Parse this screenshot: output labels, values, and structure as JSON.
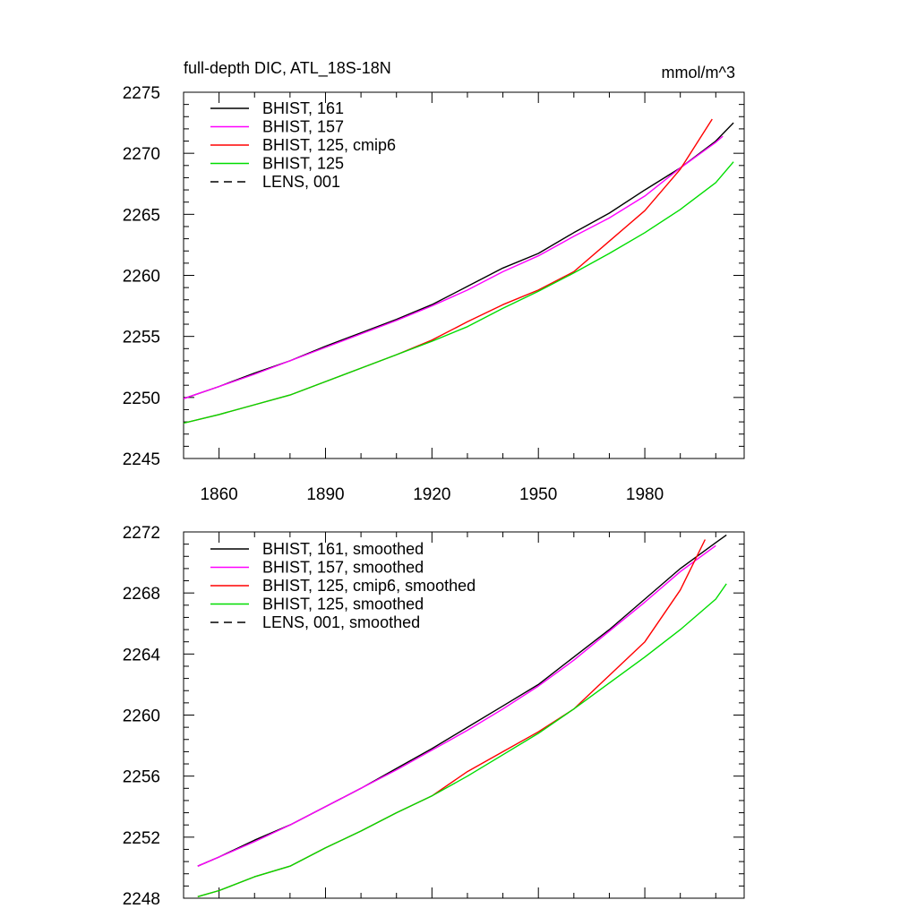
{
  "chart_data": [
    {
      "type": "line",
      "title_left": "full-depth DIC, ATL_18S-18N",
      "title_right": "mmol/m^3",
      "xlim": [
        1850,
        2008
      ],
      "ylim": [
        2245,
        2275
      ],
      "x_ticks": [
        1860,
        1890,
        1920,
        1950,
        1980
      ],
      "x_tick_labels": [
        "1860",
        "1890",
        "1920",
        "1950",
        "1980"
      ],
      "y_ticks": [
        2245,
        2250,
        2255,
        2260,
        2265,
        2270,
        2275
      ],
      "y_tick_labels": [
        "2245",
        "2250",
        "2255",
        "2260",
        "2265",
        "2270",
        "2275"
      ],
      "series": [
        {
          "name": "BHIST, 161",
          "color": "#000000",
          "dash": "solid",
          "x": [
            1850,
            1860,
            1870,
            1880,
            1890,
            1900,
            1910,
            1920,
            1930,
            1940,
            1950,
            1960,
            1970,
            1980,
            1990,
            2000,
            2005
          ],
          "y": [
            2249.9,
            2250.9,
            2252.0,
            2253.0,
            2254.2,
            2255.3,
            2256.4,
            2257.6,
            2259.1,
            2260.6,
            2261.8,
            2263.5,
            2265.1,
            2267.0,
            2268.8,
            2271.0,
            2272.5
          ]
        },
        {
          "name": "BHIST, 157",
          "color": "#ff00ff",
          "dash": "solid",
          "x": [
            1850,
            1860,
            1870,
            1880,
            1890,
            1900,
            1910,
            1920,
            1930,
            1940,
            1950,
            1960,
            1970,
            1980,
            1990,
            2000,
            2002
          ],
          "y": [
            2249.9,
            2250.9,
            2251.9,
            2253.0,
            2254.1,
            2255.2,
            2256.3,
            2257.5,
            2258.8,
            2260.3,
            2261.6,
            2263.2,
            2264.7,
            2266.5,
            2268.8,
            2270.9,
            2271.4
          ]
        },
        {
          "name": "BHIST, 125, cmip6",
          "color": "#ff0000",
          "dash": "solid",
          "x": [
            1850,
            1860,
            1870,
            1880,
            1890,
            1900,
            1910,
            1920,
            1930,
            1940,
            1950,
            1960,
            1970,
            1980,
            1990,
            1999
          ],
          "y": [
            2247.9,
            2248.6,
            2249.4,
            2250.2,
            2251.3,
            2252.4,
            2253.5,
            2254.7,
            2256.2,
            2257.6,
            2258.8,
            2260.3,
            2262.8,
            2265.3,
            2268.7,
            2272.8
          ]
        },
        {
          "name": "BHIST, 125",
          "color": "#00dd00",
          "dash": "solid",
          "x": [
            1850,
            1860,
            1870,
            1880,
            1890,
            1900,
            1910,
            1920,
            1930,
            1940,
            1950,
            1960,
            1970,
            1980,
            1990,
            2000,
            2005
          ],
          "y": [
            2247.9,
            2248.6,
            2249.4,
            2250.2,
            2251.3,
            2252.4,
            2253.5,
            2254.6,
            2255.8,
            2257.3,
            2258.7,
            2260.2,
            2261.8,
            2263.5,
            2265.4,
            2267.6,
            2269.3
          ]
        }
      ],
      "legend": [
        {
          "label": "BHIST, 161",
          "color": "#000000",
          "dash": "solid"
        },
        {
          "label": "BHIST, 157",
          "color": "#ff00ff",
          "dash": "solid"
        },
        {
          "label": "BHIST, 125, cmip6",
          "color": "#ff0000",
          "dash": "solid"
        },
        {
          "label": "BHIST, 125",
          "color": "#00dd00",
          "dash": "solid"
        },
        {
          "label": "LENS, 001",
          "color": "#000000",
          "dash": "dashed"
        }
      ]
    },
    {
      "type": "line",
      "title_left": "",
      "title_right": "",
      "xlim": [
        1850,
        2008
      ],
      "ylim": [
        2248,
        2272
      ],
      "x_ticks": [
        1860,
        1890,
        1920,
        1950,
        1980
      ],
      "x_tick_labels": [],
      "y_ticks": [
        2248,
        2252,
        2256,
        2260,
        2264,
        2268,
        2272
      ],
      "y_tick_labels": [
        "2248",
        "2252",
        "2256",
        "2260",
        "2264",
        "2268",
        "2272"
      ],
      "series": [
        {
          "name": "BHIST, 161, smoothed",
          "color": "#000000",
          "dash": "solid",
          "x": [
            1854,
            1860,
            1870,
            1880,
            1890,
            1900,
            1910,
            1920,
            1930,
            1940,
            1950,
            1960,
            1970,
            1980,
            1990,
            2000,
            2003
          ],
          "y": [
            2250.1,
            2250.7,
            2251.8,
            2252.8,
            2254.0,
            2255.2,
            2256.5,
            2257.8,
            2259.2,
            2260.6,
            2262.0,
            2263.8,
            2265.6,
            2267.6,
            2269.6,
            2271.3,
            2271.8
          ]
        },
        {
          "name": "BHIST, 157, smoothed",
          "color": "#ff00ff",
          "dash": "solid",
          "x": [
            1854,
            1860,
            1870,
            1880,
            1890,
            1900,
            1910,
            1920,
            1930,
            1940,
            1950,
            1960,
            1970,
            1980,
            1990,
            2000
          ],
          "y": [
            2250.1,
            2250.7,
            2251.7,
            2252.8,
            2254.0,
            2255.2,
            2256.4,
            2257.7,
            2259.0,
            2260.4,
            2261.9,
            2263.6,
            2265.5,
            2267.4,
            2269.4,
            2271.1
          ]
        },
        {
          "name": "BHIST, 125, cmip6, smoothed",
          "color": "#ff0000",
          "dash": "solid",
          "x": [
            1854,
            1860,
            1870,
            1880,
            1890,
            1900,
            1910,
            1920,
            1930,
            1940,
            1950,
            1960,
            1970,
            1980,
            1990,
            1997
          ],
          "y": [
            2248.1,
            2248.5,
            2249.4,
            2250.1,
            2251.3,
            2252.4,
            2253.6,
            2254.7,
            2256.3,
            2257.6,
            2258.9,
            2260.4,
            2262.6,
            2264.8,
            2268.2,
            2271.5
          ]
        },
        {
          "name": "BHIST, 125, smoothed",
          "color": "#00dd00",
          "dash": "solid",
          "x": [
            1854,
            1860,
            1870,
            1880,
            1890,
            1900,
            1910,
            1920,
            1930,
            1940,
            1950,
            1960,
            1970,
            1980,
            1990,
            2000,
            2003
          ],
          "y": [
            2248.1,
            2248.5,
            2249.4,
            2250.1,
            2251.3,
            2252.4,
            2253.6,
            2254.7,
            2256.0,
            2257.4,
            2258.8,
            2260.4,
            2262.1,
            2263.8,
            2265.6,
            2267.6,
            2268.6
          ]
        }
      ],
      "legend": [
        {
          "label": "BHIST, 161, smoothed",
          "color": "#000000",
          "dash": "solid"
        },
        {
          "label": "BHIST, 157, smoothed",
          "color": "#ff00ff",
          "dash": "solid"
        },
        {
          "label": "BHIST, 125, cmip6, smoothed",
          "color": "#ff0000",
          "dash": "solid"
        },
        {
          "label": "BHIST, 125, smoothed",
          "color": "#00dd00",
          "dash": "solid"
        },
        {
          "label": "LENS, 001, smoothed",
          "color": "#000000",
          "dash": "dashed"
        }
      ]
    }
  ]
}
